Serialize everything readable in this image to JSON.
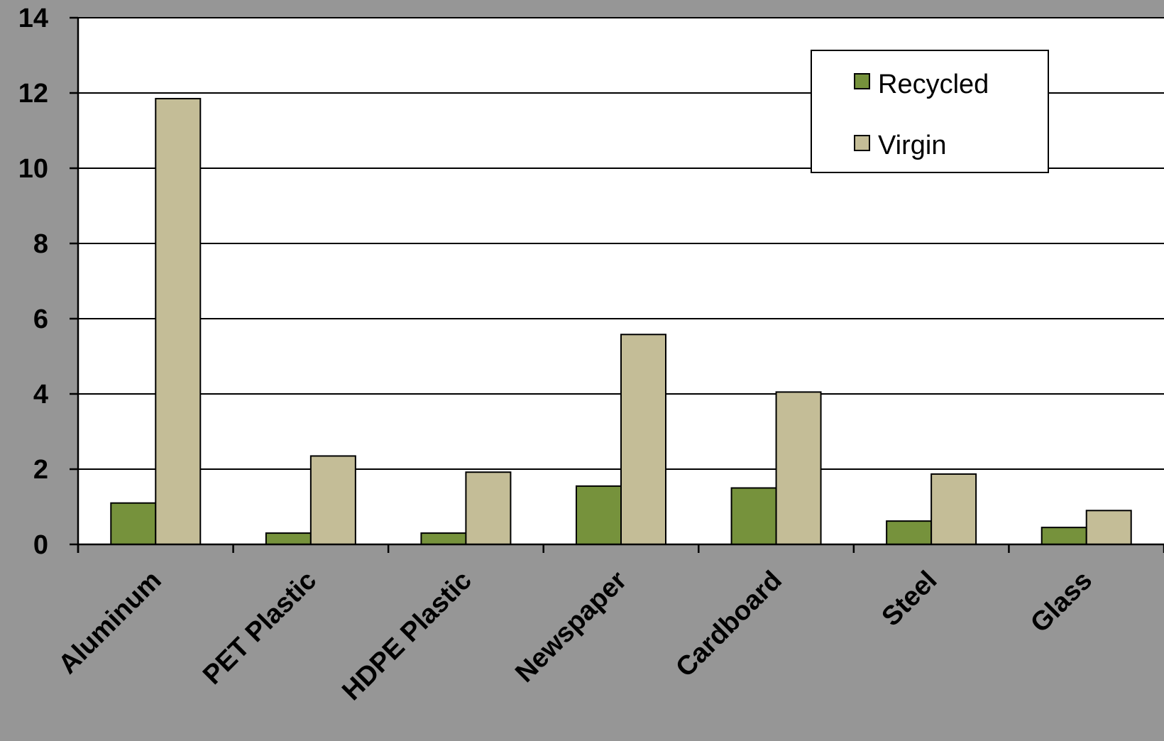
{
  "chart_data": {
    "type": "bar",
    "title": "",
    "xlabel": "",
    "ylabel": "",
    "categories": [
      "Aluminum",
      "PET Plastic",
      "HDPE Plastic",
      "Newspaper",
      "Cardboard",
      "Steel",
      "Glass"
    ],
    "series": [
      {
        "name": "Recycled",
        "color": "#76923c",
        "values": [
          1.1,
          0.3,
          0.3,
          1.55,
          1.5,
          0.62,
          0.45
        ]
      },
      {
        "name": "Virgin",
        "color": "#c4bd97",
        "values": [
          11.85,
          2.35,
          1.92,
          5.58,
          4.05,
          1.87,
          0.9
        ]
      }
    ],
    "ylim": [
      0,
      14
    ],
    "yticks": [
      "0",
      "2",
      "4",
      "6",
      "8",
      "10",
      "12",
      "14"
    ],
    "grid": true,
    "legend_position": "top-right"
  },
  "colors": {
    "background": "#969696",
    "plot_area": "#ffffff",
    "recycled": "#76923c",
    "virgin": "#c4bd97"
  }
}
